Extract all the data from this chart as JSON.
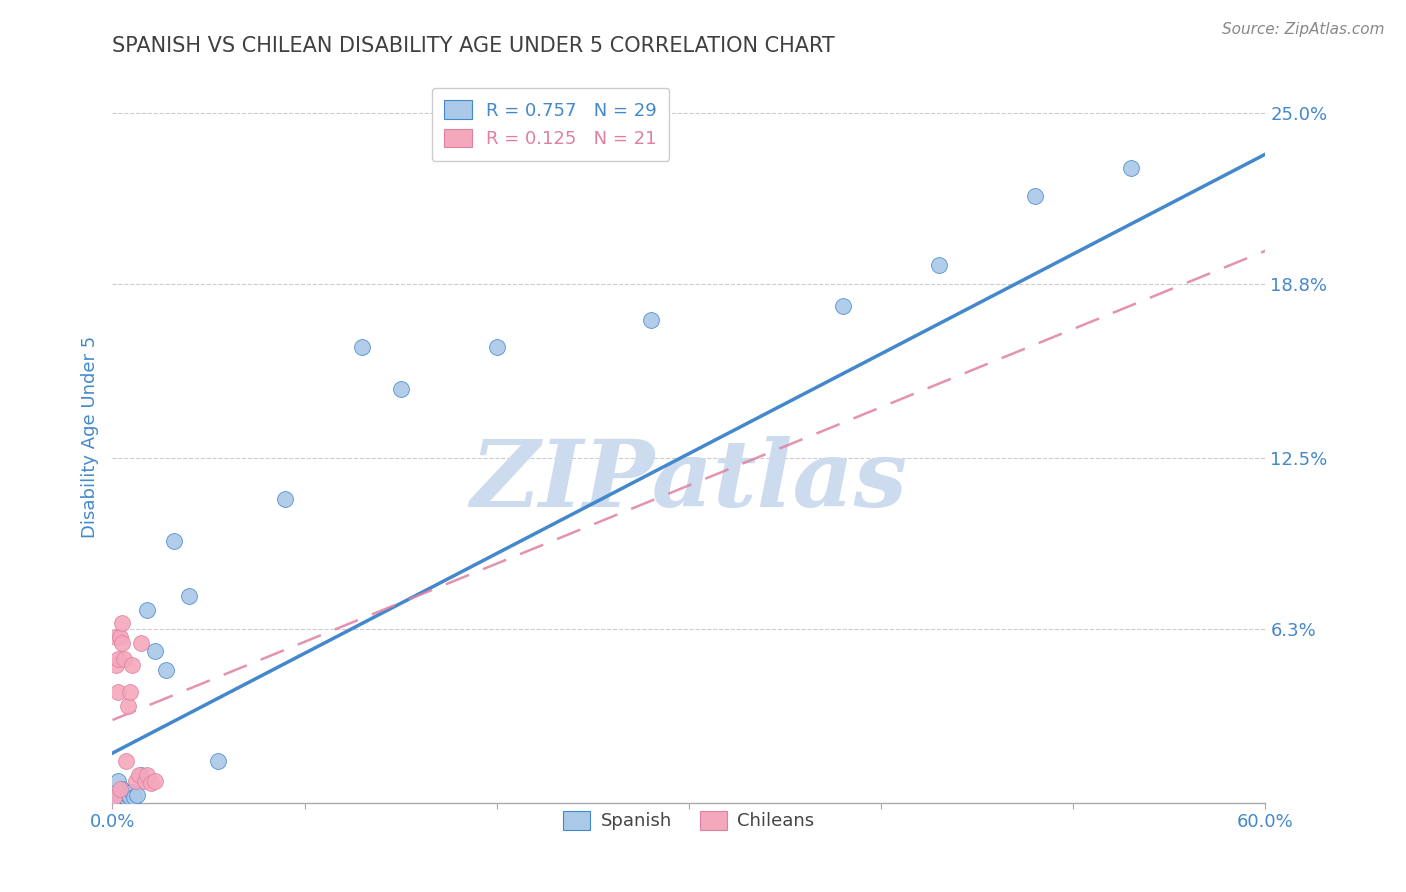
{
  "title": "SPANISH VS CHILEAN DISABILITY AGE UNDER 5 CORRELATION CHART",
  "source": "Source: ZipAtlas.com",
  "xlabel": "",
  "ylabel": "Disability Age Under 5",
  "xlim": [
    0.0,
    0.6
  ],
  "ylim": [
    0.0,
    0.265
  ],
  "yticks": [
    0.063,
    0.125,
    0.188,
    0.25
  ],
  "ytick_labels": [
    "6.3%",
    "12.5%",
    "18.8%",
    "25.0%"
  ],
  "xticks": [
    0.0,
    0.1,
    0.2,
    0.3,
    0.4,
    0.5,
    0.6
  ],
  "xtick_labels": [
    "0.0%",
    "",
    "",
    "",
    "",
    "",
    "60.0%"
  ],
  "spanish_color": "#aac8e8",
  "chilean_color": "#f4a8bc",
  "regression_spanish_color": "#4488cc",
  "regression_chilean_color": "#e080a0",
  "legend_label_spanish": "Spanish",
  "legend_label_chilean": "Chileans",
  "R_spanish": 0.757,
  "N_spanish": 29,
  "R_chilean": 0.125,
  "N_chilean": 21,
  "watermark": "ZIPatlas",
  "watermark_color": "#ccdcee",
  "background_color": "#ffffff",
  "title_color": "#404040",
  "axis_label_color": "#4488cc",
  "grid_color": "#cccccc",
  "spanish_x": [
    0.001,
    0.002,
    0.003,
    0.003,
    0.004,
    0.005,
    0.006,
    0.007,
    0.008,
    0.009,
    0.01,
    0.011,
    0.013,
    0.015,
    0.018,
    0.022,
    0.028,
    0.032,
    0.04,
    0.055,
    0.09,
    0.13,
    0.15,
    0.2,
    0.28,
    0.38,
    0.43,
    0.48,
    0.53
  ],
  "spanish_y": [
    0.001,
    0.002,
    0.003,
    0.008,
    0.003,
    0.005,
    0.004,
    0.002,
    0.003,
    0.002,
    0.004,
    0.002,
    0.003,
    0.01,
    0.07,
    0.055,
    0.048,
    0.095,
    0.075,
    0.015,
    0.11,
    0.165,
    0.15,
    0.165,
    0.175,
    0.18,
    0.195,
    0.22,
    0.23
  ],
  "chilean_x": [
    0.001,
    0.002,
    0.002,
    0.003,
    0.003,
    0.004,
    0.004,
    0.005,
    0.005,
    0.006,
    0.007,
    0.008,
    0.009,
    0.01,
    0.012,
    0.014,
    0.015,
    0.017,
    0.018,
    0.02,
    0.022
  ],
  "chilean_y": [
    0.002,
    0.05,
    0.06,
    0.04,
    0.052,
    0.005,
    0.06,
    0.058,
    0.065,
    0.052,
    0.015,
    0.035,
    0.04,
    0.05,
    0.008,
    0.01,
    0.058,
    0.008,
    0.01,
    0.007,
    0.008
  ],
  "spanish_regline_x": [
    0.0,
    0.6
  ],
  "spanish_regline_y": [
    0.018,
    0.235
  ],
  "chilean_regline_x": [
    0.0,
    0.6
  ],
  "chilean_regline_y": [
    0.03,
    0.2
  ]
}
